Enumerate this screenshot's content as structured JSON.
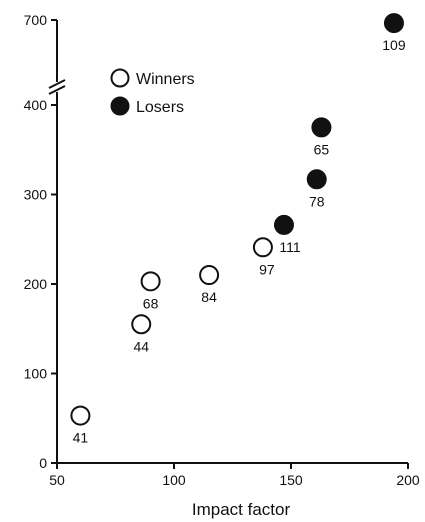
{
  "chart_data": {
    "type": "scatter",
    "title": "",
    "xlabel": "Impact factor",
    "ylabel": "",
    "xlim": [
      50,
      200
    ],
    "ylim": [
      0,
      400
    ],
    "y_break": {
      "after": 400,
      "top_tick": 700
    },
    "x_ticks": [
      "50",
      "100",
      "150",
      "200"
    ],
    "y_ticks": [
      "0",
      "100",
      "200",
      "300",
      "400",
      "700"
    ],
    "grid": false,
    "legend_position": "top-left",
    "series": [
      {
        "name": "Winners",
        "style": "open",
        "color": "#ffffff",
        "points": [
          {
            "x": 60,
            "y": 53,
            "label": "41"
          },
          {
            "x": 86,
            "y": 155,
            "label": "44"
          },
          {
            "x": 90,
            "y": 203,
            "label": "68"
          },
          {
            "x": 115,
            "y": 210,
            "label": "84"
          },
          {
            "x": 138,
            "y": 241,
            "label": "97"
          }
        ]
      },
      {
        "name": "Losers",
        "style": "filled",
        "color": "#111111",
        "points": [
          {
            "x": 147,
            "y": 266,
            "label": "111"
          },
          {
            "x": 161,
            "y": 317,
            "label": "78"
          },
          {
            "x": 163,
            "y": 375,
            "label": "65"
          },
          {
            "x": 194,
            "y": 685,
            "label": "109"
          }
        ]
      }
    ]
  }
}
